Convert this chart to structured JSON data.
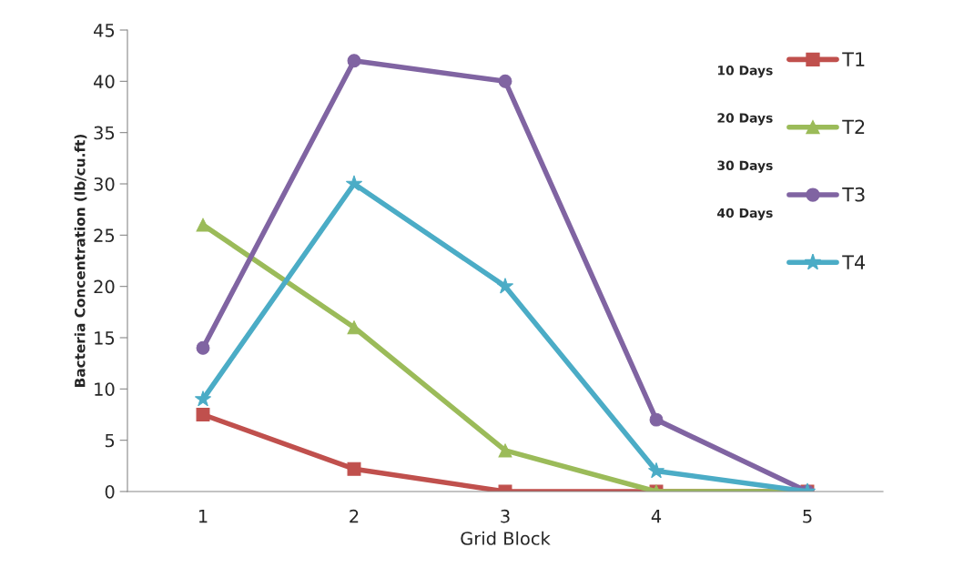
{
  "chart_data": {
    "type": "line",
    "xlabel": "Grid Block",
    "ylabel": "Bacteria Concentration (lb/cu.ft)",
    "categories": [
      "1",
      "2",
      "3",
      "4",
      "5"
    ],
    "series": [
      {
        "name": "T1",
        "color": "#c0504d",
        "marker": "square",
        "values": [
          7.5,
          2.2,
          0,
          0,
          0
        ]
      },
      {
        "name": "T2",
        "color": "#9bbb59",
        "marker": "triangle",
        "values": [
          26,
          16,
          4,
          0,
          0
        ]
      },
      {
        "name": "T3",
        "color": "#8064a2",
        "marker": "circle",
        "values": [
          14,
          42,
          40,
          7,
          0
        ]
      },
      {
        "name": "T4",
        "color": "#4bacc6",
        "marker": "star",
        "values": [
          9,
          30,
          20,
          2,
          0
        ]
      }
    ],
    "ylim": [
      0,
      45
    ],
    "yticks": [
      0,
      5,
      10,
      15,
      20,
      25,
      30,
      35,
      40,
      45
    ],
    "grid": false,
    "legend": "top right",
    "line_style": "solid",
    "annotations": [
      "10 Days",
      "20 Days",
      "30 Days",
      "40 Days"
    ]
  }
}
